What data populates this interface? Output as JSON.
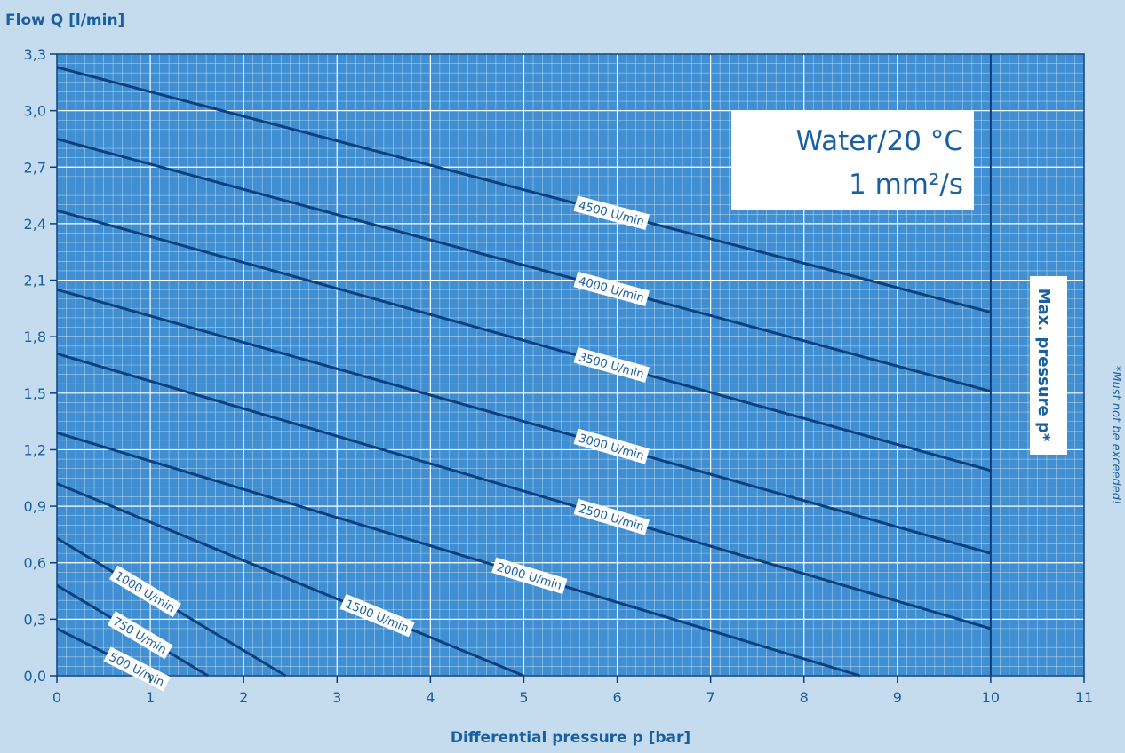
{
  "chart_data": {
    "type": "line",
    "xlabel": "Differential pressure p [bar]",
    "ylabel": "Flow Q [l/min]",
    "xlim": [
      0,
      11
    ],
    "ylim": [
      0,
      3.3
    ],
    "x_ticks": [
      "0",
      "1",
      "2",
      "3",
      "4",
      "5",
      "6",
      "7",
      "8",
      "9",
      "10",
      "11"
    ],
    "y_ticks": [
      "0,0",
      "0,3",
      "0,6",
      "0,9",
      "1,2",
      "1,5",
      "1,8",
      "2,1",
      "2,4",
      "2,7",
      "3,0",
      "3,3"
    ],
    "grid": true,
    "series": [
      {
        "name": "4500 U/min",
        "x": [
          0,
          10
        ],
        "y": [
          3.23,
          1.93
        ]
      },
      {
        "name": "4000 U/min",
        "x": [
          0,
          10
        ],
        "y": [
          2.85,
          1.51
        ]
      },
      {
        "name": "3500 U/min",
        "x": [
          0,
          10
        ],
        "y": [
          2.47,
          1.09
        ]
      },
      {
        "name": "3000 U/min",
        "x": [
          0,
          10
        ],
        "y": [
          2.05,
          0.65
        ]
      },
      {
        "name": "2500 U/min",
        "x": [
          0,
          10
        ],
        "y": [
          1.71,
          0.25
        ]
      },
      {
        "name": "2000 U/min",
        "x": [
          0,
          8.6
        ],
        "y": [
          1.29,
          0.0
        ]
      },
      {
        "name": "1500 U/min",
        "x": [
          0,
          5.0
        ],
        "y": [
          1.02,
          0.0
        ]
      },
      {
        "name": "1000 U/min",
        "x": [
          0,
          2.45
        ],
        "y": [
          0.73,
          0.0
        ]
      },
      {
        "name": "750 U/min",
        "x": [
          0,
          1.62
        ],
        "y": [
          0.48,
          0.0
        ]
      },
      {
        "name": "500 U/min",
        "x": [
          0,
          1.0
        ],
        "y": [
          0.25,
          0.0
        ]
      }
    ],
    "annotations": {
      "medium_line1": "Water/20 °C",
      "medium_line2": "1 mm²/s",
      "max_pressure_label": "Max. pressure p*",
      "max_pressure_x": 10,
      "footnote": "*Must not be exceeded!"
    },
    "colors": {
      "background": "#c5dcef",
      "plot_area": "#3f8fd2",
      "grid": "#ffffff",
      "line": "#0b3f7e",
      "text": "#1a5fa0"
    }
  }
}
